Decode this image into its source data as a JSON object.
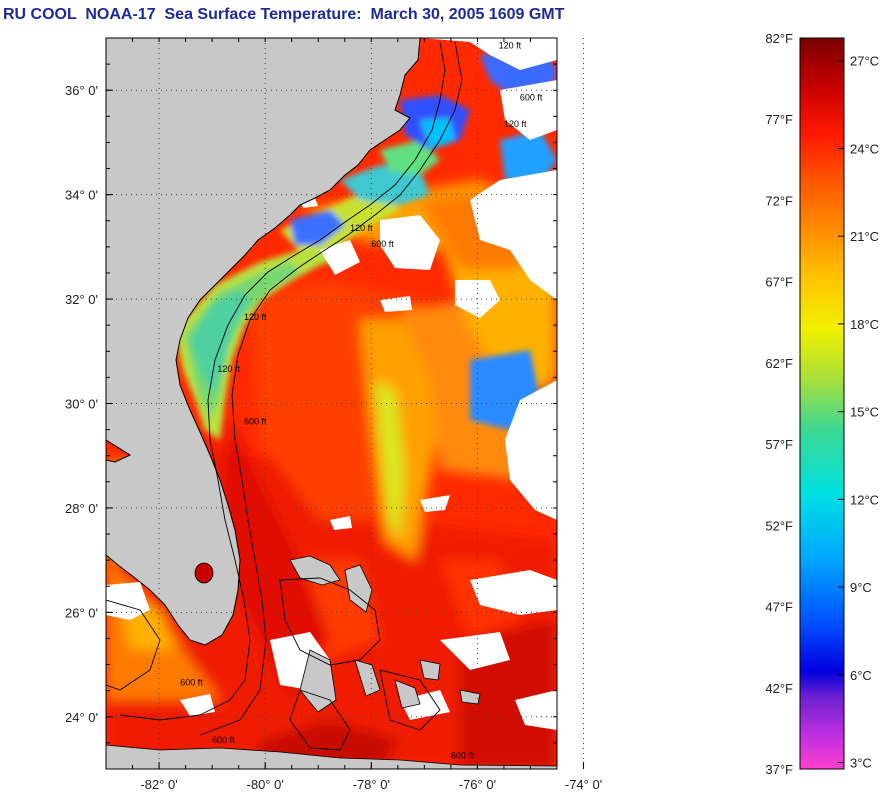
{
  "title": "RU COOL  NOAA-17  Sea Surface Temperature:  March 30, 2005 1609 GMT",
  "map": {
    "lat_range": [
      23,
      37
    ],
    "lon_range": [
      -83,
      -74.5
    ],
    "lat_ticks": [
      {
        "value": 36,
        "label": "36° 0'"
      },
      {
        "value": 34,
        "label": "34° 0'"
      },
      {
        "value": 32,
        "label": "32° 0'"
      },
      {
        "value": 30,
        "label": "30° 0'"
      },
      {
        "value": 28,
        "label": "28° 0'"
      },
      {
        "value": 26,
        "label": "26° 0'"
      },
      {
        "value": 24,
        "label": "24° 0'"
      }
    ],
    "lon_ticks": [
      {
        "value": -82,
        "label": "-82° 0'"
      },
      {
        "value": -80,
        "label": "-80° 0'"
      },
      {
        "value": -78,
        "label": "-78° 0'"
      },
      {
        "value": -76,
        "label": "-76° 0'"
      },
      {
        "value": -74,
        "label": "-74° 0'"
      }
    ],
    "contour_labels": [
      {
        "text": "120 ft",
        "lon": -75.6,
        "lat": 36.8
      },
      {
        "text": "600 ft",
        "lon": -75.2,
        "lat": 35.8
      },
      {
        "text": "120 ft",
        "lon": -75.5,
        "lat": 35.3
      },
      {
        "text": "120 ft",
        "lon": -78.4,
        "lat": 33.3
      },
      {
        "text": "600 ft",
        "lon": -78.0,
        "lat": 33.0
      },
      {
        "text": "120 ft",
        "lon": -80.4,
        "lat": 31.6
      },
      {
        "text": "120 ft",
        "lon": -80.9,
        "lat": 30.6
      },
      {
        "text": "600 ft",
        "lon": -80.4,
        "lat": 29.6
      },
      {
        "text": "600 ft",
        "lon": -81.6,
        "lat": 24.6
      },
      {
        "text": "600 ft",
        "lon": -81.0,
        "lat": 23.5
      },
      {
        "text": "600 ft",
        "lon": -76.5,
        "lat": 23.2
      }
    ],
    "colors": {
      "land": "#c8c8c8",
      "cloud": "#ffffff",
      "frame": "#000000"
    }
  },
  "colorbar": {
    "fahrenheit": [
      {
        "value": 82,
        "label": "82°F"
      },
      {
        "value": 77,
        "label": "77°F"
      },
      {
        "value": 72,
        "label": "72°F"
      },
      {
        "value": 67,
        "label": "67°F"
      },
      {
        "value": 62,
        "label": "62°F"
      },
      {
        "value": 57,
        "label": "57°F"
      },
      {
        "value": 52,
        "label": "52°F"
      },
      {
        "value": 47,
        "label": "47°F"
      },
      {
        "value": 42,
        "label": "42°F"
      },
      {
        "value": 37,
        "label": "37°F"
      }
    ],
    "celsius": [
      {
        "value": 27,
        "label": "27°C"
      },
      {
        "value": 24,
        "label": "24°C"
      },
      {
        "value": 21,
        "label": "21°C"
      },
      {
        "value": 18,
        "label": "18°C"
      },
      {
        "value": 15,
        "label": "15°C"
      },
      {
        "value": 12,
        "label": "12°C"
      },
      {
        "value": 9,
        "label": "9°C"
      },
      {
        "value": 6,
        "label": "6°C"
      },
      {
        "value": 3,
        "label": "3°C"
      }
    ],
    "range_f": [
      37,
      82
    ],
    "stops": [
      {
        "f": 82,
        "color": "#7a0000"
      },
      {
        "f": 79,
        "color": "#c80000"
      },
      {
        "f": 76,
        "color": "#ff1a00"
      },
      {
        "f": 73,
        "color": "#ff5a00"
      },
      {
        "f": 70,
        "color": "#ff9000"
      },
      {
        "f": 67,
        "color": "#ffc800"
      },
      {
        "f": 64,
        "color": "#f0f000"
      },
      {
        "f": 61,
        "color": "#a8e03c"
      },
      {
        "f": 58,
        "color": "#40d890"
      },
      {
        "f": 54,
        "color": "#00e0e0"
      },
      {
        "f": 50,
        "color": "#00a8ff"
      },
      {
        "f": 46,
        "color": "#0050ff"
      },
      {
        "f": 43,
        "color": "#0000e0"
      },
      {
        "f": 41.5,
        "color": "#6a20d0"
      },
      {
        "f": 39,
        "color": "#c030e0"
      },
      {
        "f": 37,
        "color": "#ff40d0"
      }
    ]
  }
}
